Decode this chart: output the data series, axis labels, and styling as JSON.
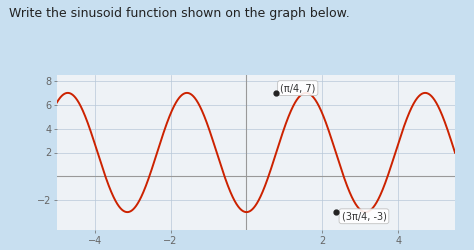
{
  "title": "Write the sinusoid function shown on the graph below.",
  "amplitude": 5,
  "vertical_shift": 2,
  "B": 2,
  "phase_shift": 0.7853981633974483,
  "x_min": -5,
  "x_max": 5.5,
  "y_min": -4.5,
  "y_max": 8.5,
  "x_ticks": [
    -4,
    -2,
    2,
    4
  ],
  "y_ticks": [
    -2,
    2,
    4,
    6,
    8
  ],
  "max_point": [
    0.7853981633974483,
    7
  ],
  "min_point": [
    2.356194490192345,
    -3
  ],
  "max_label": "(π/4, 7)",
  "min_label": "(3π/4, -3)",
  "line_color": "#cc2200",
  "bg_color": "#c8dff0",
  "plot_bg": "#eef2f6",
  "grid_color": "#b8c8d8",
  "axis_color": "#999999",
  "tick_color": "#666666",
  "title_fontsize": 9,
  "tick_fontsize": 7,
  "annot_fontsize": 7
}
